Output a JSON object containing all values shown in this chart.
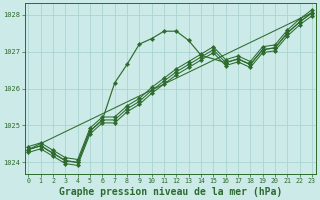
{
  "background_color": "#cceae8",
  "grid_color": "#aad4d0",
  "line_color": "#2d6b2d",
  "xlabel": "Graphe pression niveau de la mer (hPa)",
  "xlim": [
    0,
    23
  ],
  "ylim": [
    1023.7,
    1028.3
  ],
  "yticks": [
    1024,
    1025,
    1026,
    1027,
    1028
  ],
  "xticks": [
    0,
    1,
    2,
    3,
    4,
    5,
    6,
    7,
    8,
    9,
    10,
    11,
    12,
    13,
    14,
    15,
    16,
    17,
    18,
    19,
    20,
    21,
    22,
    23
  ],
  "series_main": {
    "x": [
      0,
      1,
      2,
      3,
      4,
      5,
      6,
      7,
      8,
      9,
      10,
      11,
      12,
      13,
      14,
      16,
      17,
      18,
      19,
      20,
      21,
      22,
      23
    ],
    "y": [
      1024.35,
      1024.45,
      1024.25,
      1024.05,
      1024.0,
      1024.85,
      1025.15,
      1026.15,
      1026.65,
      1027.2,
      1027.35,
      1027.55,
      1027.55,
      1027.3,
      1026.9,
      1026.7,
      1026.8,
      1026.65,
      1027.05,
      1027.1,
      1027.5,
      1027.8,
      1028.05
    ]
  },
  "series_linear1": {
    "x": [
      0,
      1,
      2,
      3,
      4,
      5,
      6,
      7,
      8,
      9,
      10,
      11,
      12,
      13,
      14,
      15,
      16,
      17,
      18,
      19,
      20,
      21,
      22,
      23
    ],
    "y": [
      1024.35,
      1024.45,
      1024.25,
      1024.05,
      1024.0,
      1024.85,
      1025.15,
      1025.15,
      1025.45,
      1025.65,
      1025.95,
      1026.2,
      1026.45,
      1026.65,
      1026.85,
      1027.05,
      1026.7,
      1026.8,
      1026.65,
      1027.05,
      1027.1,
      1027.5,
      1027.8,
      1028.05
    ]
  },
  "series_linear2": {
    "x": [
      0,
      1,
      2,
      3,
      4,
      5,
      6,
      7,
      8,
      9,
      10,
      11,
      12,
      13,
      14,
      15,
      16,
      17,
      18,
      19,
      20,
      21,
      22,
      23
    ],
    "y": [
      1024.35,
      1024.45,
      1024.25,
      1024.05,
      1024.0,
      1024.85,
      1025.15,
      1025.15,
      1025.45,
      1025.65,
      1025.95,
      1026.2,
      1026.45,
      1026.65,
      1026.85,
      1027.05,
      1026.7,
      1026.8,
      1026.65,
      1027.05,
      1027.1,
      1027.5,
      1027.8,
      1028.05
    ]
  },
  "series_linear3": {
    "x": [
      0,
      1,
      2,
      3,
      4,
      5,
      6,
      7,
      8,
      9,
      10,
      11,
      12,
      13,
      14,
      15,
      16,
      17,
      18,
      19,
      20,
      21,
      22,
      23
    ],
    "y": [
      1024.35,
      1024.45,
      1024.25,
      1024.05,
      1024.0,
      1024.85,
      1025.15,
      1025.15,
      1025.45,
      1025.65,
      1025.95,
      1026.2,
      1026.45,
      1026.65,
      1026.85,
      1027.05,
      1026.7,
      1026.8,
      1026.65,
      1027.05,
      1027.1,
      1027.5,
      1027.8,
      1028.05
    ]
  },
  "series_straight": {
    "x": [
      0,
      23
    ],
    "y": [
      1024.35,
      1028.05
    ]
  }
}
